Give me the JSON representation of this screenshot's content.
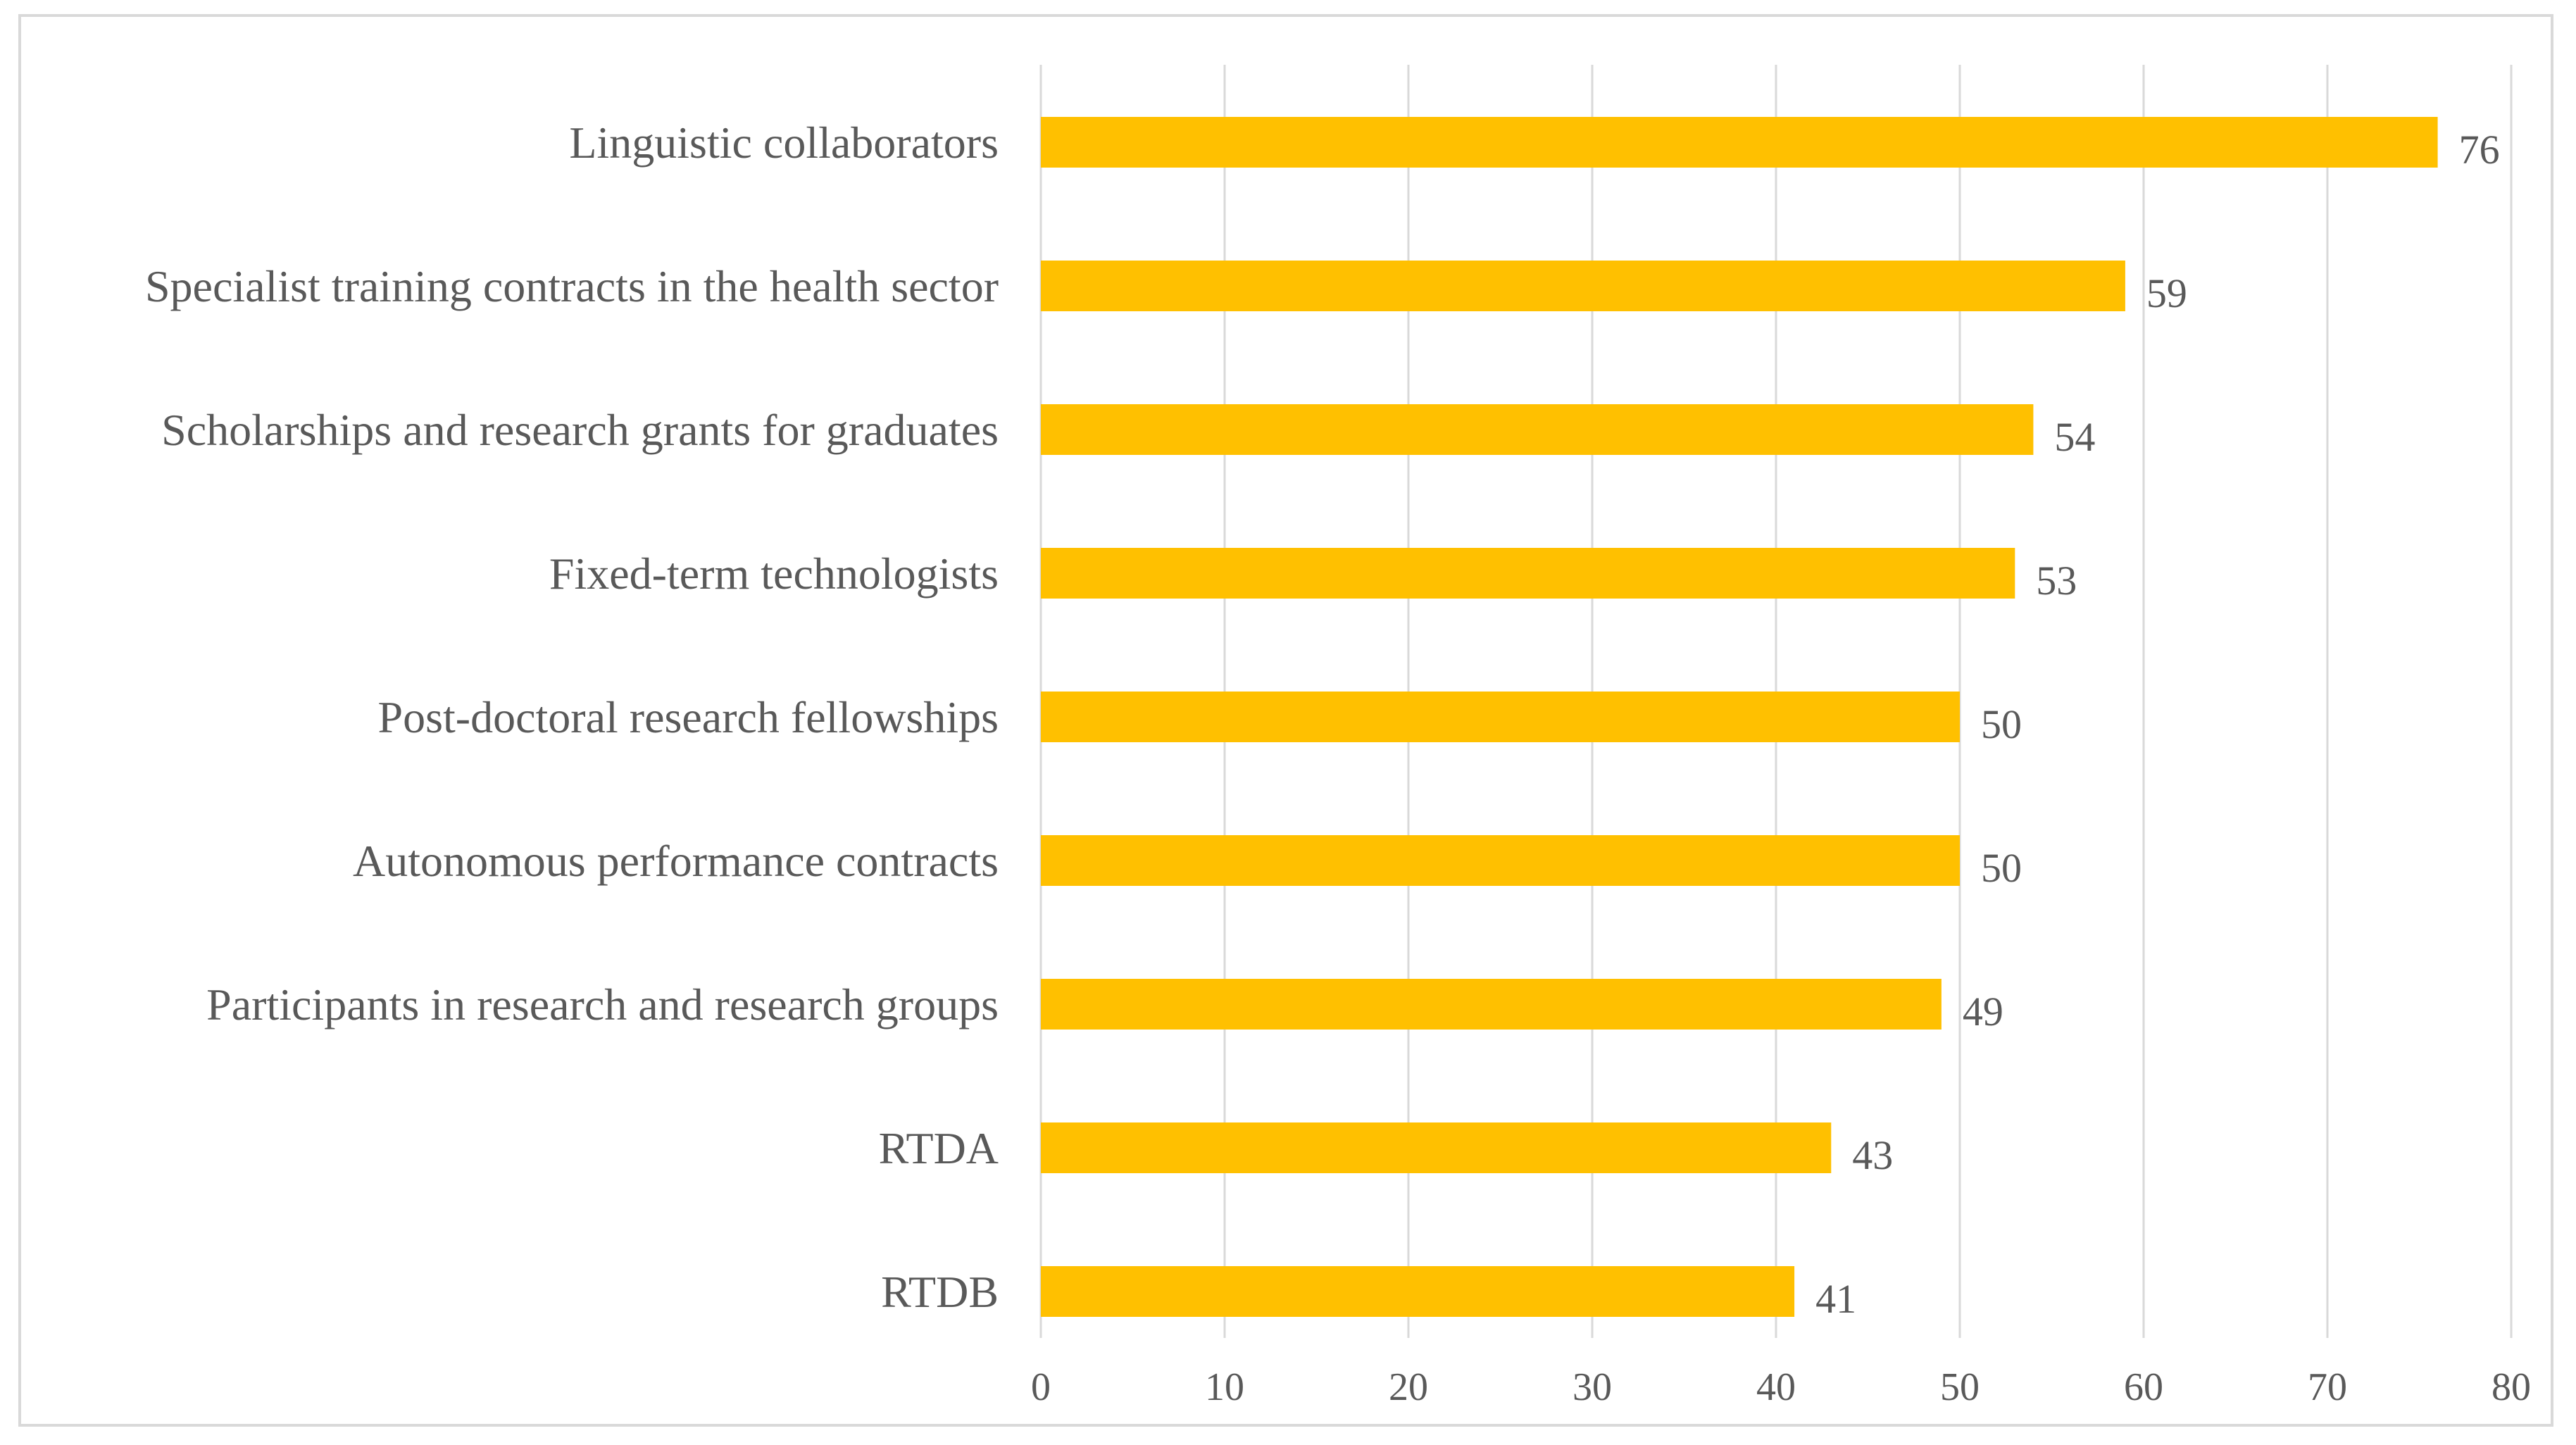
{
  "chart_data": {
    "type": "bar",
    "orientation": "horizontal",
    "title": "",
    "xlabel": "",
    "ylabel": "",
    "categories": [
      "Linguistic collaborators",
      "Specialist training contracts in the health sector",
      "Scholarships and research grants for graduates",
      "Fixed-term technologists",
      "Post-doctoral research fellowships",
      "Autonomous performance contracts",
      "Participants in research and research groups",
      "RTDA",
      "RTDB"
    ],
    "values": [
      76,
      59,
      54,
      53,
      50,
      50,
      49,
      43,
      41
    ],
    "value_labels": [
      "76",
      "59",
      "54",
      "53",
      "50",
      "50",
      "49",
      "43",
      "41"
    ],
    "xlim": [
      0,
      80
    ],
    "xticks": [
      0,
      10,
      20,
      30,
      40,
      50,
      60,
      70,
      80
    ],
    "xtick_labels": [
      "0",
      "10",
      "20",
      "30",
      "40",
      "50",
      "60",
      "70",
      "80"
    ],
    "grid": "vertical",
    "legend": "none",
    "bar_color": "#ffc000",
    "grid_color": "#d9d9d9",
    "text_color": "#595959"
  }
}
